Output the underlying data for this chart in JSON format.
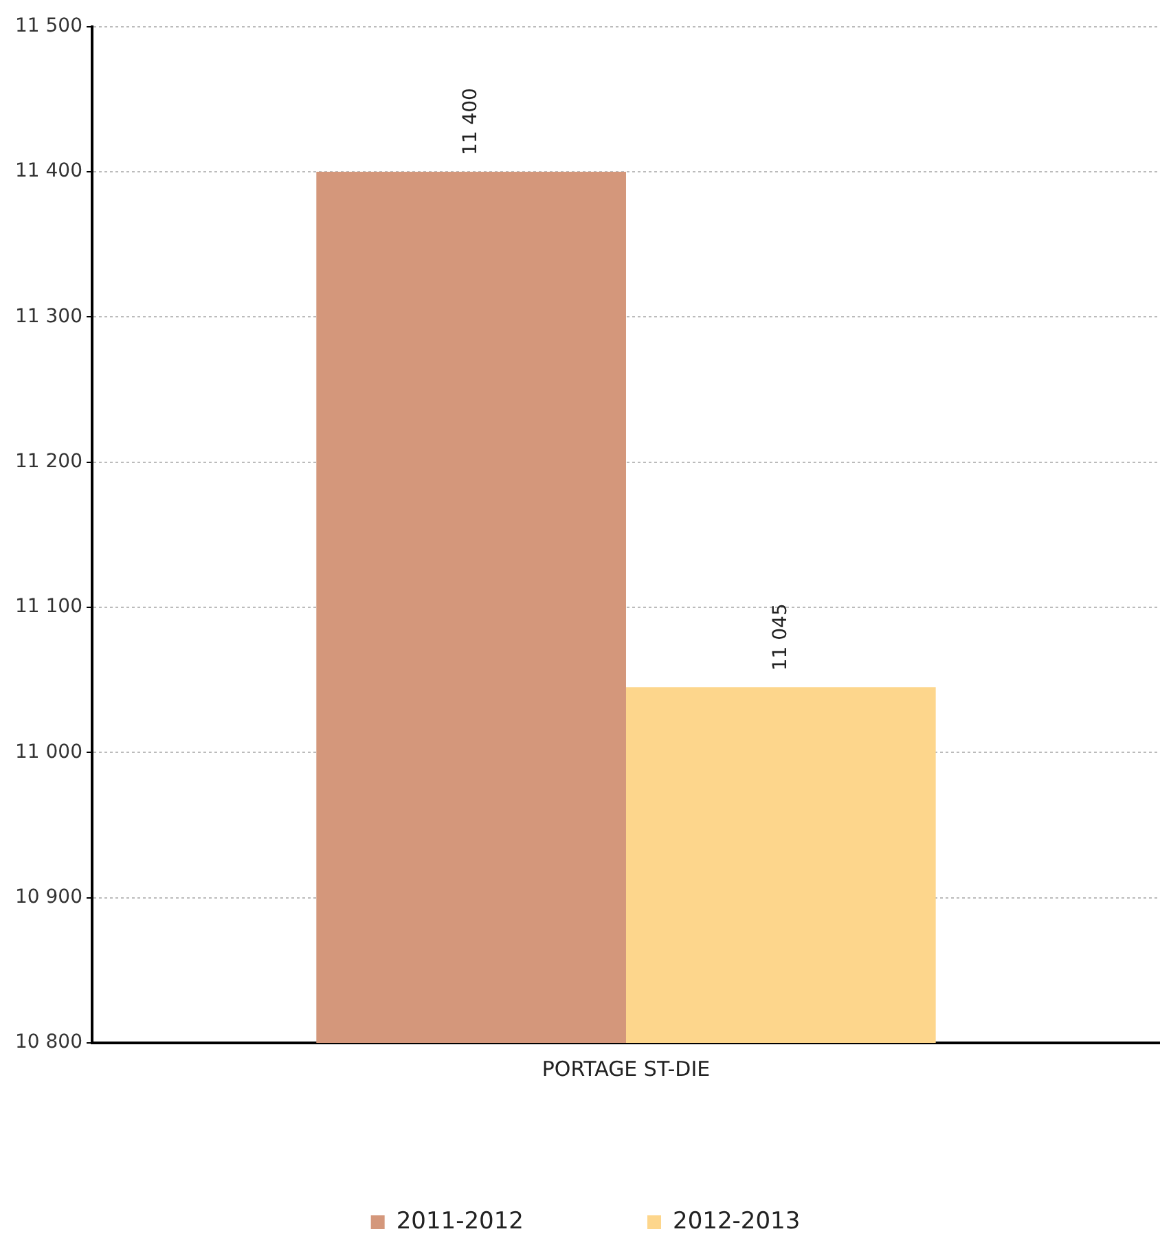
{
  "chart_data": {
    "type": "bar",
    "categories": [
      "PORTAGE ST-DIE"
    ],
    "series": [
      {
        "name": "2011-2012",
        "color": "#d4977b",
        "values": [
          11400
        ],
        "value_labels": [
          "11 400"
        ]
      },
      {
        "name": "2012-2013",
        "color": "#fdd68c",
        "values": [
          11045
        ],
        "value_labels": [
          "11 045"
        ]
      }
    ],
    "ylim": [
      10800,
      11500
    ],
    "yticks": [
      {
        "value": 10800,
        "label": "10 800"
      },
      {
        "value": 10900,
        "label": "10 900"
      },
      {
        "value": 11000,
        "label": "11 000"
      },
      {
        "value": 11100,
        "label": "11 100"
      },
      {
        "value": 11200,
        "label": "11 200"
      },
      {
        "value": 11300,
        "label": "11 300"
      },
      {
        "value": 11400,
        "label": "11 400"
      },
      {
        "value": 11500,
        "label": "11 500"
      }
    ],
    "grid": "y",
    "legend": "bottom"
  }
}
